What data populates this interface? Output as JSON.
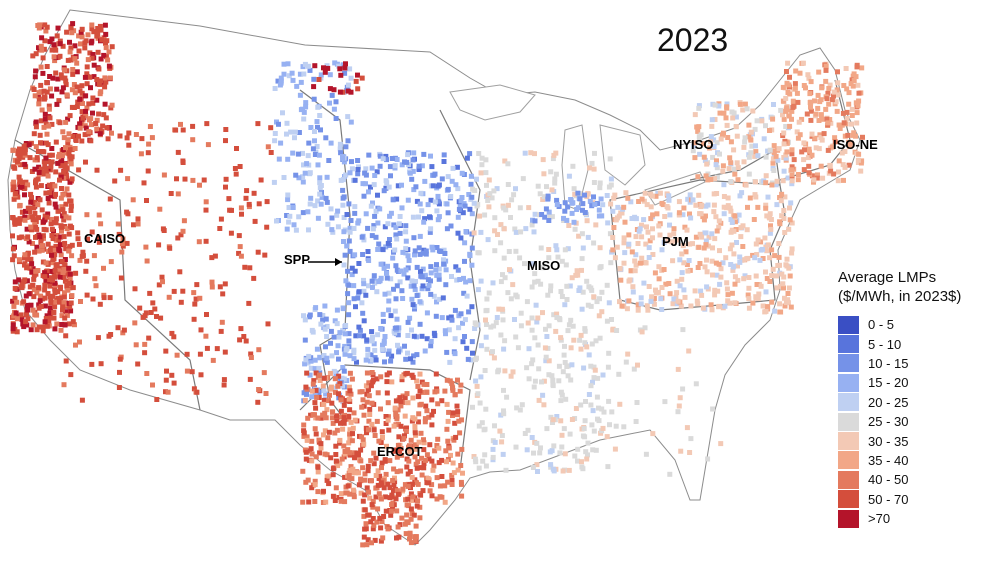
{
  "map": {
    "year": "2023",
    "regions": [
      {
        "id": "caiso",
        "label": "CAISO"
      },
      {
        "id": "spp",
        "label": "SPP"
      },
      {
        "id": "miso",
        "label": "MISO"
      },
      {
        "id": "pjm",
        "label": "PJM"
      },
      {
        "id": "nyiso",
        "label": "NYISO"
      },
      {
        "id": "isone",
        "label": "ISO-NE"
      },
      {
        "id": "ercot",
        "label": "ERCOT"
      }
    ],
    "legend": {
      "title_line1": "Average LMPs",
      "title_line2": "($/MWh, in 2023$)",
      "bins": [
        {
          "label": "0 - 5",
          "color": "#3a4fc4"
        },
        {
          "label": "5 - 10",
          "color": "#5874dc"
        },
        {
          "label": "10 - 15",
          "color": "#7592e8"
        },
        {
          "label": "15 - 20",
          "color": "#97b1f2"
        },
        {
          "label": "20 - 25",
          "color": "#bfd0f2"
        },
        {
          "label": "25 - 30",
          "color": "#dadada"
        },
        {
          "label": "30 - 35",
          "color": "#f3c9b5"
        },
        {
          "label": "35 - 40",
          "color": "#f2a787"
        },
        {
          "label": "40 - 50",
          "color": "#e47a5e"
        },
        {
          "label": "50 - 70",
          "color": "#d44e3c"
        },
        {
          "label": ">70",
          "color": "#b4142a"
        }
      ]
    }
  }
}
